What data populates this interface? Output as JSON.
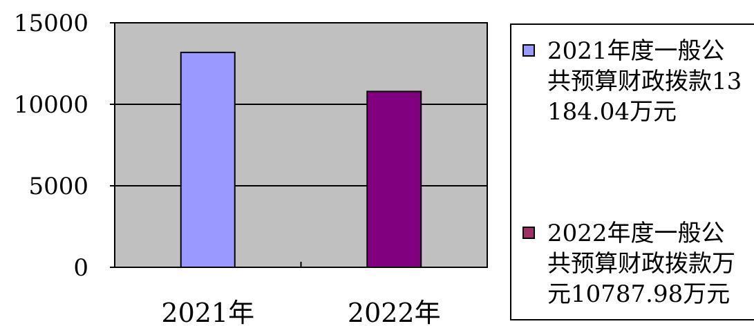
{
  "chart_data": {
    "type": "bar",
    "categories": [
      "2021年",
      "2022年"
    ],
    "values": [
      13184.04,
      10787.98
    ],
    "colors": [
      "#9999ff",
      "#800080"
    ],
    "ylim": [
      0,
      15000
    ],
    "yticks": [
      "0",
      "5000",
      "10000",
      "15000"
    ],
    "grid": true,
    "plot_background": "#c0c0c0",
    "legend_position": "right",
    "legend": [
      {
        "label": "2021年度一般公共预算财政拨款13184.04万元",
        "color": "#9999ff"
      },
      {
        "label": "2022年度一般公共预算财政拨款万元10787.98万元",
        "color": "#993366"
      }
    ]
  }
}
